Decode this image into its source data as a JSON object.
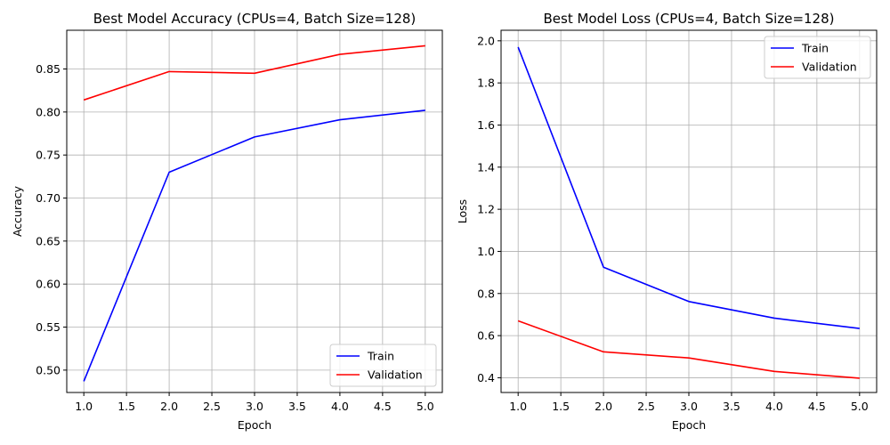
{
  "colors": {
    "train": "#0000ff",
    "validation": "#ff0000",
    "grid": "#b0b0b0",
    "axis": "#000000"
  },
  "chart_data": [
    {
      "type": "line",
      "title": "Best Model Accuracy (CPUs=4, Batch Size=128)",
      "xlabel": "Epoch",
      "ylabel": "Accuracy",
      "xlim": [
        0.8,
        5.2
      ],
      "ylim": [
        0.474,
        0.895
      ],
      "xticks": [
        1.0,
        1.5,
        2.0,
        2.5,
        3.0,
        3.5,
        4.0,
        4.5,
        5.0
      ],
      "xtick_labels": [
        "1.0",
        "1.5",
        "2.0",
        "2.5",
        "3.0",
        "3.5",
        "4.0",
        "4.5",
        "5.0"
      ],
      "yticks": [
        0.5,
        0.55,
        0.6,
        0.65,
        0.7,
        0.75,
        0.8,
        0.85
      ],
      "ytick_labels": [
        "0.50",
        "0.55",
        "0.60",
        "0.65",
        "0.70",
        "0.75",
        "0.80",
        "0.85"
      ],
      "grid": true,
      "legend_position": "lower-right",
      "x": [
        1,
        2,
        3,
        4,
        5
      ],
      "series": [
        {
          "name": "Train",
          "color": "#0000ff",
          "values": [
            0.487,
            0.73,
            0.771,
            0.791,
            0.802
          ]
        },
        {
          "name": "Validation",
          "color": "#ff0000",
          "values": [
            0.814,
            0.847,
            0.845,
            0.867,
            0.877
          ]
        }
      ]
    },
    {
      "type": "line",
      "title": "Best Model Loss (CPUs=4, Batch Size=128)",
      "xlabel": "Epoch",
      "ylabel": "Loss",
      "xlim": [
        0.8,
        5.2
      ],
      "ylim": [
        0.33,
        2.05
      ],
      "xticks": [
        1.0,
        1.5,
        2.0,
        2.5,
        3.0,
        3.5,
        4.0,
        4.5,
        5.0
      ],
      "xtick_labels": [
        "1.0",
        "1.5",
        "2.0",
        "2.5",
        "3.0",
        "3.5",
        "4.0",
        "4.5",
        "5.0"
      ],
      "yticks": [
        0.4,
        0.6,
        0.8,
        1.0,
        1.2,
        1.4,
        1.6,
        1.8,
        2.0
      ],
      "ytick_labels": [
        "0.4",
        "0.6",
        "0.8",
        "1.0",
        "1.2",
        "1.4",
        "1.6",
        "1.8",
        "2.0"
      ],
      "grid": true,
      "legend_position": "upper-right",
      "x": [
        1,
        2,
        3,
        4,
        5
      ],
      "series": [
        {
          "name": "Train",
          "color": "#0000ff",
          "values": [
            1.97,
            0.925,
            0.762,
            0.683,
            0.634
          ]
        },
        {
          "name": "Validation",
          "color": "#ff0000",
          "values": [
            0.67,
            0.523,
            0.494,
            0.43,
            0.398
          ]
        }
      ]
    }
  ]
}
